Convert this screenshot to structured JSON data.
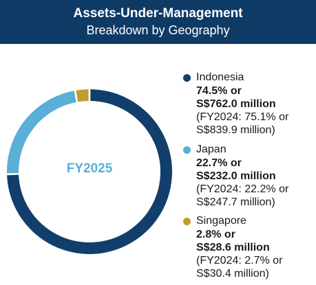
{
  "header": {
    "title": "Assets-Under-Management",
    "subtitle": "Breakdown by Geography"
  },
  "chart_data": {
    "type": "pie",
    "center_label": "FY2025",
    "series": [
      {
        "name": "Indonesia",
        "value": 74.5,
        "value_line1": "74.5% or",
        "value_line2": "S$762.0 million",
        "prior_line1": "(FY2024: 75.1% or",
        "prior_line2": "S$839.9 million)",
        "color": "#123e6b"
      },
      {
        "name": "Japan",
        "value": 22.7,
        "value_line1": "22.7% or",
        "value_line2": "S$232.0 million",
        "prior_line1": "(FY2024: 22.2% or",
        "prior_line2": "S$247.7 million)",
        "color": "#5aafd9"
      },
      {
        "name": "Singapore",
        "value": 2.8,
        "value_line1": "2.8% or",
        "value_line2": "S$28.6 million",
        "prior_line1": "(FY2024: 2.7% or",
        "prior_line2": "S$30.4 million)",
        "color": "#c49a2c"
      }
    ],
    "legend_position": "right"
  }
}
